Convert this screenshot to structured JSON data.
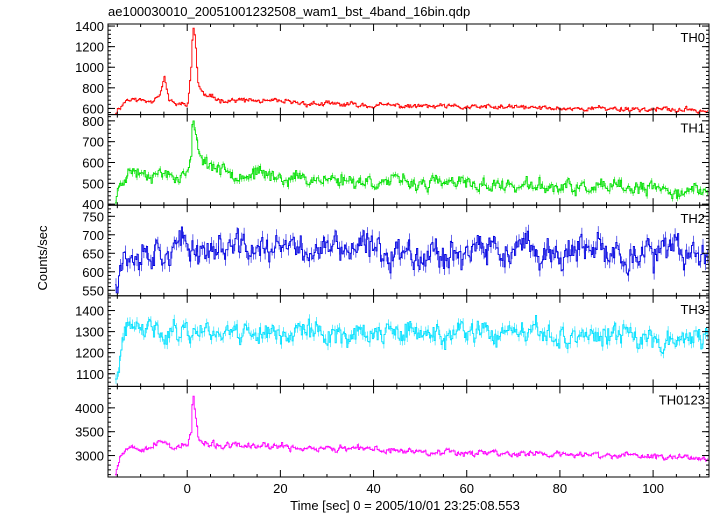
{
  "chart_data": {
    "type": "line",
    "title": "ae100030010_20051001232508_wam1_bst_4band_16bin.qdp",
    "xlabel": "Time [sec] 0 = 2005/10/01 23:25:08.553",
    "ylabel": "Counts/sec",
    "xlim": [
      -17,
      112
    ],
    "xticks": [
      0,
      20,
      40,
      60,
      80,
      100
    ],
    "grid": false,
    "panels": [
      {
        "name": "TH0",
        "color": "#ff0000",
        "ylim": [
          540,
          1420
        ],
        "yticks": [
          600,
          800,
          1000,
          1200,
          1400
        ],
        "key_x": [
          -15.5,
          -14.5,
          -13,
          -10,
          -8,
          -6,
          -5,
          -4,
          -3,
          -1,
          0,
          0.8,
          1.1,
          1.6,
          2.2,
          3,
          4,
          6,
          10,
          20,
          30,
          40,
          50,
          60,
          70,
          80,
          90,
          100,
          110,
          111.5
        ],
        "key_y": [
          560,
          620,
          690,
          680,
          670,
          750,
          900,
          680,
          640,
          640,
          650,
          1000,
          1400,
          1300,
          850,
          760,
          720,
          690,
          680,
          660,
          640,
          630,
          620,
          610,
          610,
          600,
          600,
          590,
          580,
          580
        ],
        "noise": 30,
        "seed": 11
      },
      {
        "name": "TH1",
        "color": "#00e000",
        "ylim": [
          395,
          830
        ],
        "yticks": [
          400,
          500,
          600,
          700,
          800
        ],
        "key_x": [
          -15.5,
          -14.5,
          -13,
          -5,
          -3,
          -1,
          0,
          0.8,
          1.1,
          1.8,
          2.5,
          4,
          8,
          20,
          40,
          60,
          80,
          100,
          111.5
        ],
        "key_y": [
          420,
          500,
          560,
          550,
          540,
          540,
          560,
          620,
          820,
          700,
          650,
          600,
          560,
          530,
          510,
          495,
          480,
          470,
          460
        ],
        "noise": 40,
        "seed": 23
      },
      {
        "name": "TH2",
        "color": "#0000e0",
        "ylim": [
          535,
          780
        ],
        "yticks": [
          550,
          600,
          650,
          700,
          750
        ],
        "key_x": [
          -15.5,
          -14.5,
          -10,
          0,
          20,
          40,
          60,
          80,
          100,
          111.5
        ],
        "key_y": [
          570,
          640,
          660,
          665,
          660,
          658,
          655,
          650,
          648,
          645
        ],
        "noise": 50,
        "seed": 37
      },
      {
        "name": "TH3",
        "color": "#00e0ff",
        "ylim": [
          1040,
          1470
        ],
        "yticks": [
          1100,
          1200,
          1300,
          1400
        ],
        "key_x": [
          -15.5,
          -15,
          -14,
          -13,
          0,
          20,
          40,
          60,
          80,
          100,
          111.5
        ],
        "key_y": [
          1060,
          1100,
          1250,
          1300,
          1310,
          1300,
          1290,
          1285,
          1280,
          1275,
          1270
        ],
        "noise": 65,
        "seed": 41
      },
      {
        "name": "TH0123",
        "color": "#ff00ff",
        "ylim": [
          2550,
          4450
        ],
        "yticks": [
          3000,
          3500,
          4000
        ],
        "key_x": [
          -15.5,
          -14.5,
          -13,
          -8,
          -5,
          -3,
          -1,
          0,
          0.8,
          1.1,
          1.6,
          2.3,
          3,
          4,
          8,
          20,
          40,
          60,
          80,
          100,
          111.5
        ],
        "key_y": [
          2650,
          3000,
          3180,
          3200,
          3300,
          3180,
          3200,
          3220,
          3500,
          4350,
          3900,
          3350,
          3250,
          3220,
          3200,
          3180,
          3120,
          3070,
          3020,
          2980,
          2960
        ],
        "noise": 85,
        "seed": 53
      }
    ]
  }
}
